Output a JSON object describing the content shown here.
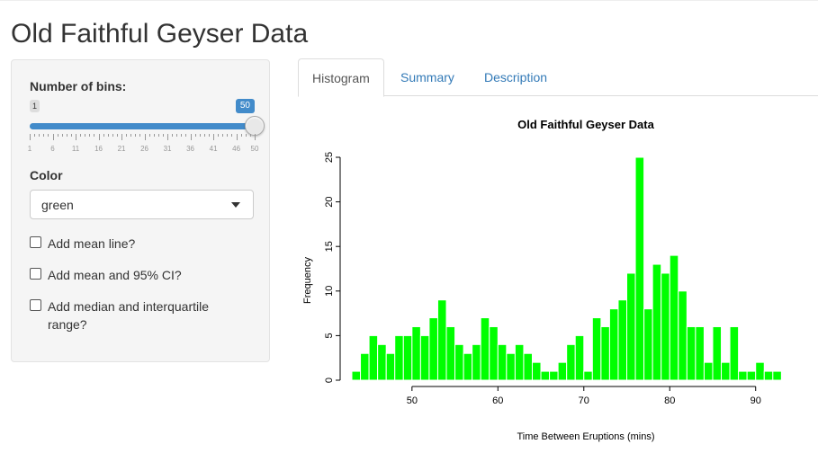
{
  "app": {
    "title": "Old Faithful Geyser Data"
  },
  "sidebar": {
    "bins": {
      "label": "Number of bins:",
      "min_label": "1",
      "value_label": "50",
      "min": 1,
      "max": 50,
      "value": 50,
      "tick_labels": [
        "1",
        "6",
        "11",
        "16",
        "21",
        "26",
        "31",
        "36",
        "41",
        "46",
        "50"
      ],
      "tick_values": [
        1,
        6,
        11,
        16,
        21,
        26,
        31,
        36,
        41,
        46,
        50
      ]
    },
    "color": {
      "label": "Color",
      "selected": "green"
    },
    "checkboxes": [
      {
        "label": "Add mean line?",
        "checked": false
      },
      {
        "label": "Add mean and 95% CI?",
        "checked": false
      },
      {
        "label": "Add median and interquartile range?",
        "checked": false
      }
    ],
    "colors": {
      "slider_accent": "#428bca"
    }
  },
  "tabs": [
    {
      "label": "Histogram",
      "active": true
    },
    {
      "label": "Summary",
      "active": false
    },
    {
      "label": "Description",
      "active": false
    }
  ],
  "chart_data": {
    "type": "bar",
    "title": "Old Faithful Geyser Data",
    "xlabel": "Time Between Eruptions (mins)",
    "ylabel": "Frequency",
    "bin_start": 43,
    "bin_width": 1,
    "values": [
      1,
      3,
      5,
      4,
      3,
      5,
      5,
      6,
      5,
      7,
      9,
      6,
      4,
      3,
      4,
      7,
      6,
      4,
      3,
      4,
      3,
      2,
      1,
      1,
      2,
      4,
      5,
      1,
      7,
      6,
      8,
      9,
      12,
      25,
      8,
      13,
      12,
      14,
      10,
      6,
      6,
      2,
      6,
      2,
      6,
      1,
      1,
      2,
      1,
      1
    ],
    "xticks": [
      50,
      60,
      70,
      80,
      90
    ],
    "xlim": [
      43,
      96
    ],
    "yticks": [
      0,
      5,
      10,
      15,
      20,
      25
    ],
    "ylim": [
      0,
      25
    ],
    "grid": false,
    "bar_color": "#00ff00"
  }
}
